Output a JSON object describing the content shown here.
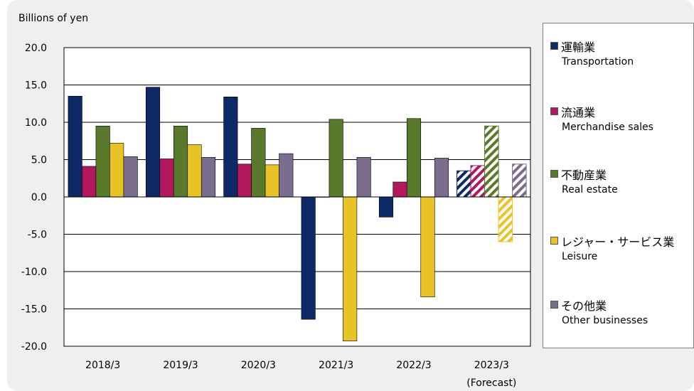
{
  "chart_data": {
    "type": "bar",
    "ylabel": "Billions of yen",
    "ylim": [
      -20,
      20
    ],
    "yticks": [
      "20.0",
      "15.0",
      "10.0",
      "5.0",
      "0.0",
      "-5.0",
      "-10.0",
      "-15.0",
      "-20.0"
    ],
    "categories": [
      "2018/3",
      "2019/3",
      "2020/3",
      "2021/3",
      "2022/3",
      "2023/3"
    ],
    "category_note": {
      "index": 5,
      "text": "(Forecast)"
    },
    "forecast_index": 5,
    "grid": true,
    "legend_position": "right",
    "series": [
      {
        "name": "運輸業",
        "name_en": "Transportation",
        "color": "#0d2a66",
        "values": [
          13.5,
          14.7,
          13.4,
          -16.4,
          -2.7,
          3.5
        ]
      },
      {
        "name": "流通業",
        "name_en": "Merchandise sales",
        "color": "#b3175e",
        "values": [
          4.1,
          5.1,
          4.4,
          0.0,
          2.0,
          4.2
        ]
      },
      {
        "name": "不動産業",
        "name_en": "Real estate",
        "color": "#5a7a2b",
        "values": [
          9.5,
          9.5,
          9.2,
          10.4,
          10.5,
          9.5
        ]
      },
      {
        "name": "レジャー・サービス業",
        "name_en": "Leisure",
        "color": "#e8c325",
        "values": [
          7.2,
          7.0,
          4.3,
          -19.3,
          -13.4,
          -6.0
        ]
      },
      {
        "name": "その他業",
        "name_en": "Other businesses",
        "color": "#7a6d8e",
        "values": [
          5.4,
          5.3,
          5.8,
          5.3,
          5.2,
          4.4
        ]
      }
    ]
  }
}
